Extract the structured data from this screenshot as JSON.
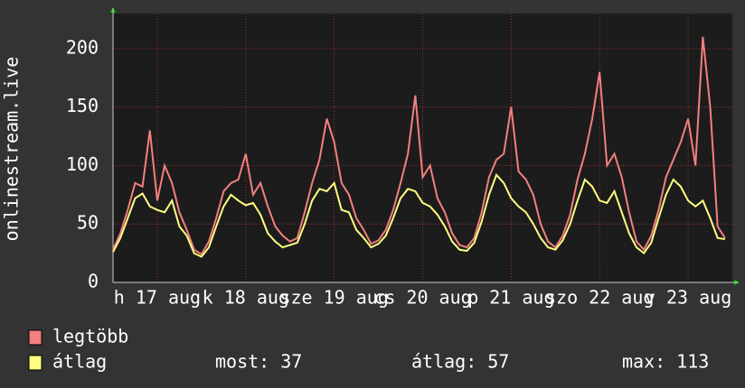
{
  "chart_data": {
    "type": "line",
    "y_label": "onlinestream.live",
    "x": [
      0,
      2,
      4,
      6,
      8,
      10,
      12,
      14,
      16,
      18,
      20,
      22,
      24,
      26,
      28,
      30,
      32,
      34,
      36,
      38,
      40,
      42,
      44,
      46,
      48,
      50,
      52,
      54,
      56,
      58,
      60,
      62,
      64,
      66,
      68,
      70,
      72,
      74,
      76,
      78,
      80,
      82,
      84,
      86,
      88,
      90,
      92,
      94,
      96,
      98,
      100,
      102,
      104,
      106,
      108,
      110,
      112,
      114,
      116,
      118,
      120,
      122,
      124,
      126,
      128,
      130,
      132,
      134,
      136,
      138,
      140,
      142,
      144,
      146,
      148,
      150,
      152,
      154,
      156,
      158,
      160,
      162,
      164,
      166
    ],
    "xlim": [
      0,
      168
    ],
    "xticks": [
      {
        "value": 12,
        "label": "h 17 aug"
      },
      {
        "value": 36,
        "label": "k 18 aug"
      },
      {
        "value": 60,
        "label": "sze 19 aug"
      },
      {
        "value": 84,
        "label": "cs 20 aug"
      },
      {
        "value": 108,
        "label": "p 21 aug"
      },
      {
        "value": 132,
        "label": "szo 22 aug"
      },
      {
        "value": 156,
        "label": "v 23 aug"
      }
    ],
    "ylim": [
      0,
      230
    ],
    "yticks": [
      0,
      50,
      100,
      150,
      200
    ],
    "grid": true,
    "series": [
      {
        "name": "legtöbb",
        "color": "#f47f7f",
        "values": [
          28,
          42,
          62,
          85,
          82,
          130,
          70,
          100,
          85,
          60,
          45,
          28,
          24,
          35,
          55,
          78,
          85,
          88,
          110,
          75,
          85,
          65,
          48,
          40,
          35,
          38,
          60,
          85,
          105,
          140,
          120,
          85,
          75,
          55,
          45,
          33,
          36,
          45,
          62,
          85,
          110,
          160,
          90,
          100,
          72,
          60,
          42,
          32,
          30,
          38,
          60,
          90,
          105,
          110,
          150,
          95,
          88,
          75,
          50,
          35,
          30,
          40,
          58,
          88,
          110,
          140,
          180,
          100,
          110,
          90,
          60,
          35,
          28,
          40,
          62,
          90,
          105,
          120,
          140,
          100,
          210,
          150,
          48,
          38
        ]
      },
      {
        "name": "átlag",
        "color": "#ffff7f",
        "values": [
          26,
          38,
          55,
          72,
          76,
          65,
          62,
          60,
          70,
          48,
          40,
          25,
          22,
          30,
          48,
          65,
          75,
          70,
          66,
          68,
          58,
          42,
          35,
          30,
          32,
          34,
          50,
          70,
          80,
          78,
          85,
          62,
          60,
          45,
          38,
          30,
          33,
          40,
          55,
          72,
          80,
          78,
          68,
          65,
          58,
          48,
          35,
          28,
          27,
          34,
          52,
          75,
          92,
          85,
          72,
          65,
          60,
          50,
          38,
          30,
          28,
          36,
          50,
          70,
          88,
          82,
          70,
          68,
          78,
          60,
          42,
          30,
          25,
          34,
          55,
          75,
          88,
          82,
          70,
          65,
          70,
          55,
          38,
          37
        ]
      }
    ],
    "stats": [
      {
        "label": "most:",
        "value": 37
      },
      {
        "label": "átlag:",
        "value": 57
      },
      {
        "label": "max:",
        "value": 113
      }
    ]
  }
}
